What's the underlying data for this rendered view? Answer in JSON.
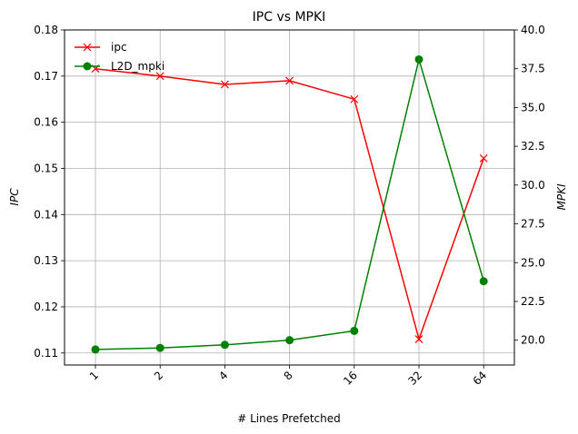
{
  "chart_data": {
    "type": "line",
    "title": "IPC vs MPKI",
    "xlabel": "# Lines Prefetched",
    "ylabel_left": "IPC",
    "ylabel_right": "MPKI",
    "categories": [
      "1",
      "2",
      "4",
      "8",
      "16",
      "32",
      "64"
    ],
    "ylim_left": [
      0.1074,
      0.18
    ],
    "ylim_right": [
      18.4,
      40.0
    ],
    "yticks_left": [
      "0.11",
      "0.12",
      "0.13",
      "0.14",
      "0.15",
      "0.16",
      "0.17",
      "0.18"
    ],
    "yticks_right": [
      "20.0",
      "22.5",
      "25.0",
      "27.5",
      "30.0",
      "32.5",
      "35.0",
      "37.5",
      "40.0"
    ],
    "grid": true,
    "legend_position": "top-left",
    "series": [
      {
        "name": "ipc",
        "axis": "left",
        "color": "#ff0000",
        "marker": "x",
        "values": [
          0.1716,
          0.17,
          0.1682,
          0.169,
          0.165,
          0.113,
          0.1522
        ]
      },
      {
        "name": "L2D_mpki",
        "axis": "right",
        "color": "#008000",
        "marker": "o",
        "values": [
          19.4,
          19.5,
          19.7,
          20.0,
          20.6,
          38.1,
          23.8
        ]
      }
    ]
  }
}
